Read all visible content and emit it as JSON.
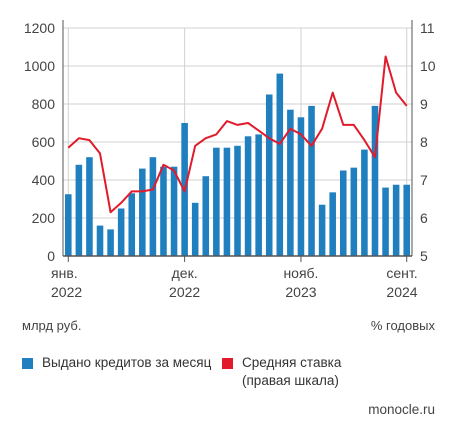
{
  "colors": {
    "bars": "#1f7fbf",
    "line": "#e11b2b",
    "grid": "#d0d0d0",
    "axis": "#555555"
  },
  "units": {
    "left": "млрд руб.",
    "right": "% годовых"
  },
  "legend": {
    "bars": "Выдано кредитов за месяц",
    "line_1": "Средняя ставка",
    "line_2": "(правая шкала)"
  },
  "source": "monocle.ru",
  "chart_data": {
    "type": "bar",
    "title": "",
    "xlabel": "",
    "ylabel": "",
    "x_tick_labels": [
      {
        "index": 0,
        "line1": "янв.",
        "line2": "2022"
      },
      {
        "index": 11,
        "line1": "дек.",
        "line2": "2022"
      },
      {
        "index": 22,
        "line1": "нояб.",
        "line2": "2023"
      },
      {
        "index": 32,
        "line1": "сент.",
        "line2": "2024"
      }
    ],
    "y_left": {
      "min": 0,
      "max": 1200,
      "ticks": [
        0,
        200,
        400,
        600,
        800,
        1000,
        1200
      ]
    },
    "y_right": {
      "min": 5,
      "max": 11,
      "ticks": [
        5,
        6,
        7,
        8,
        9,
        10,
        11
      ]
    },
    "grid": true,
    "legend_position": "bottom",
    "series": [
      {
        "name": "Выдано кредитов за месяц",
        "type": "bar",
        "axis": "left",
        "values": [
          325,
          480,
          520,
          160,
          140,
          250,
          330,
          460,
          520,
          470,
          470,
          700,
          280,
          420,
          570,
          570,
          580,
          630,
          640,
          850,
          960,
          770,
          730,
          790,
          270,
          335,
          450,
          465,
          560,
          790,
          360,
          375,
          375
        ]
      },
      {
        "name": "Средняя ставка",
        "type": "line",
        "axis": "right",
        "values": [
          7.85,
          8.1,
          8.05,
          7.7,
          6.15,
          6.4,
          6.7,
          6.7,
          6.75,
          7.4,
          7.25,
          6.7,
          7.9,
          8.1,
          8.2,
          8.55,
          8.45,
          8.5,
          8.3,
          8.1,
          7.95,
          8.35,
          8.2,
          7.9,
          8.35,
          9.3,
          8.45,
          8.45,
          8.05,
          7.6,
          10.25,
          9.3,
          8.95
        ]
      }
    ]
  }
}
